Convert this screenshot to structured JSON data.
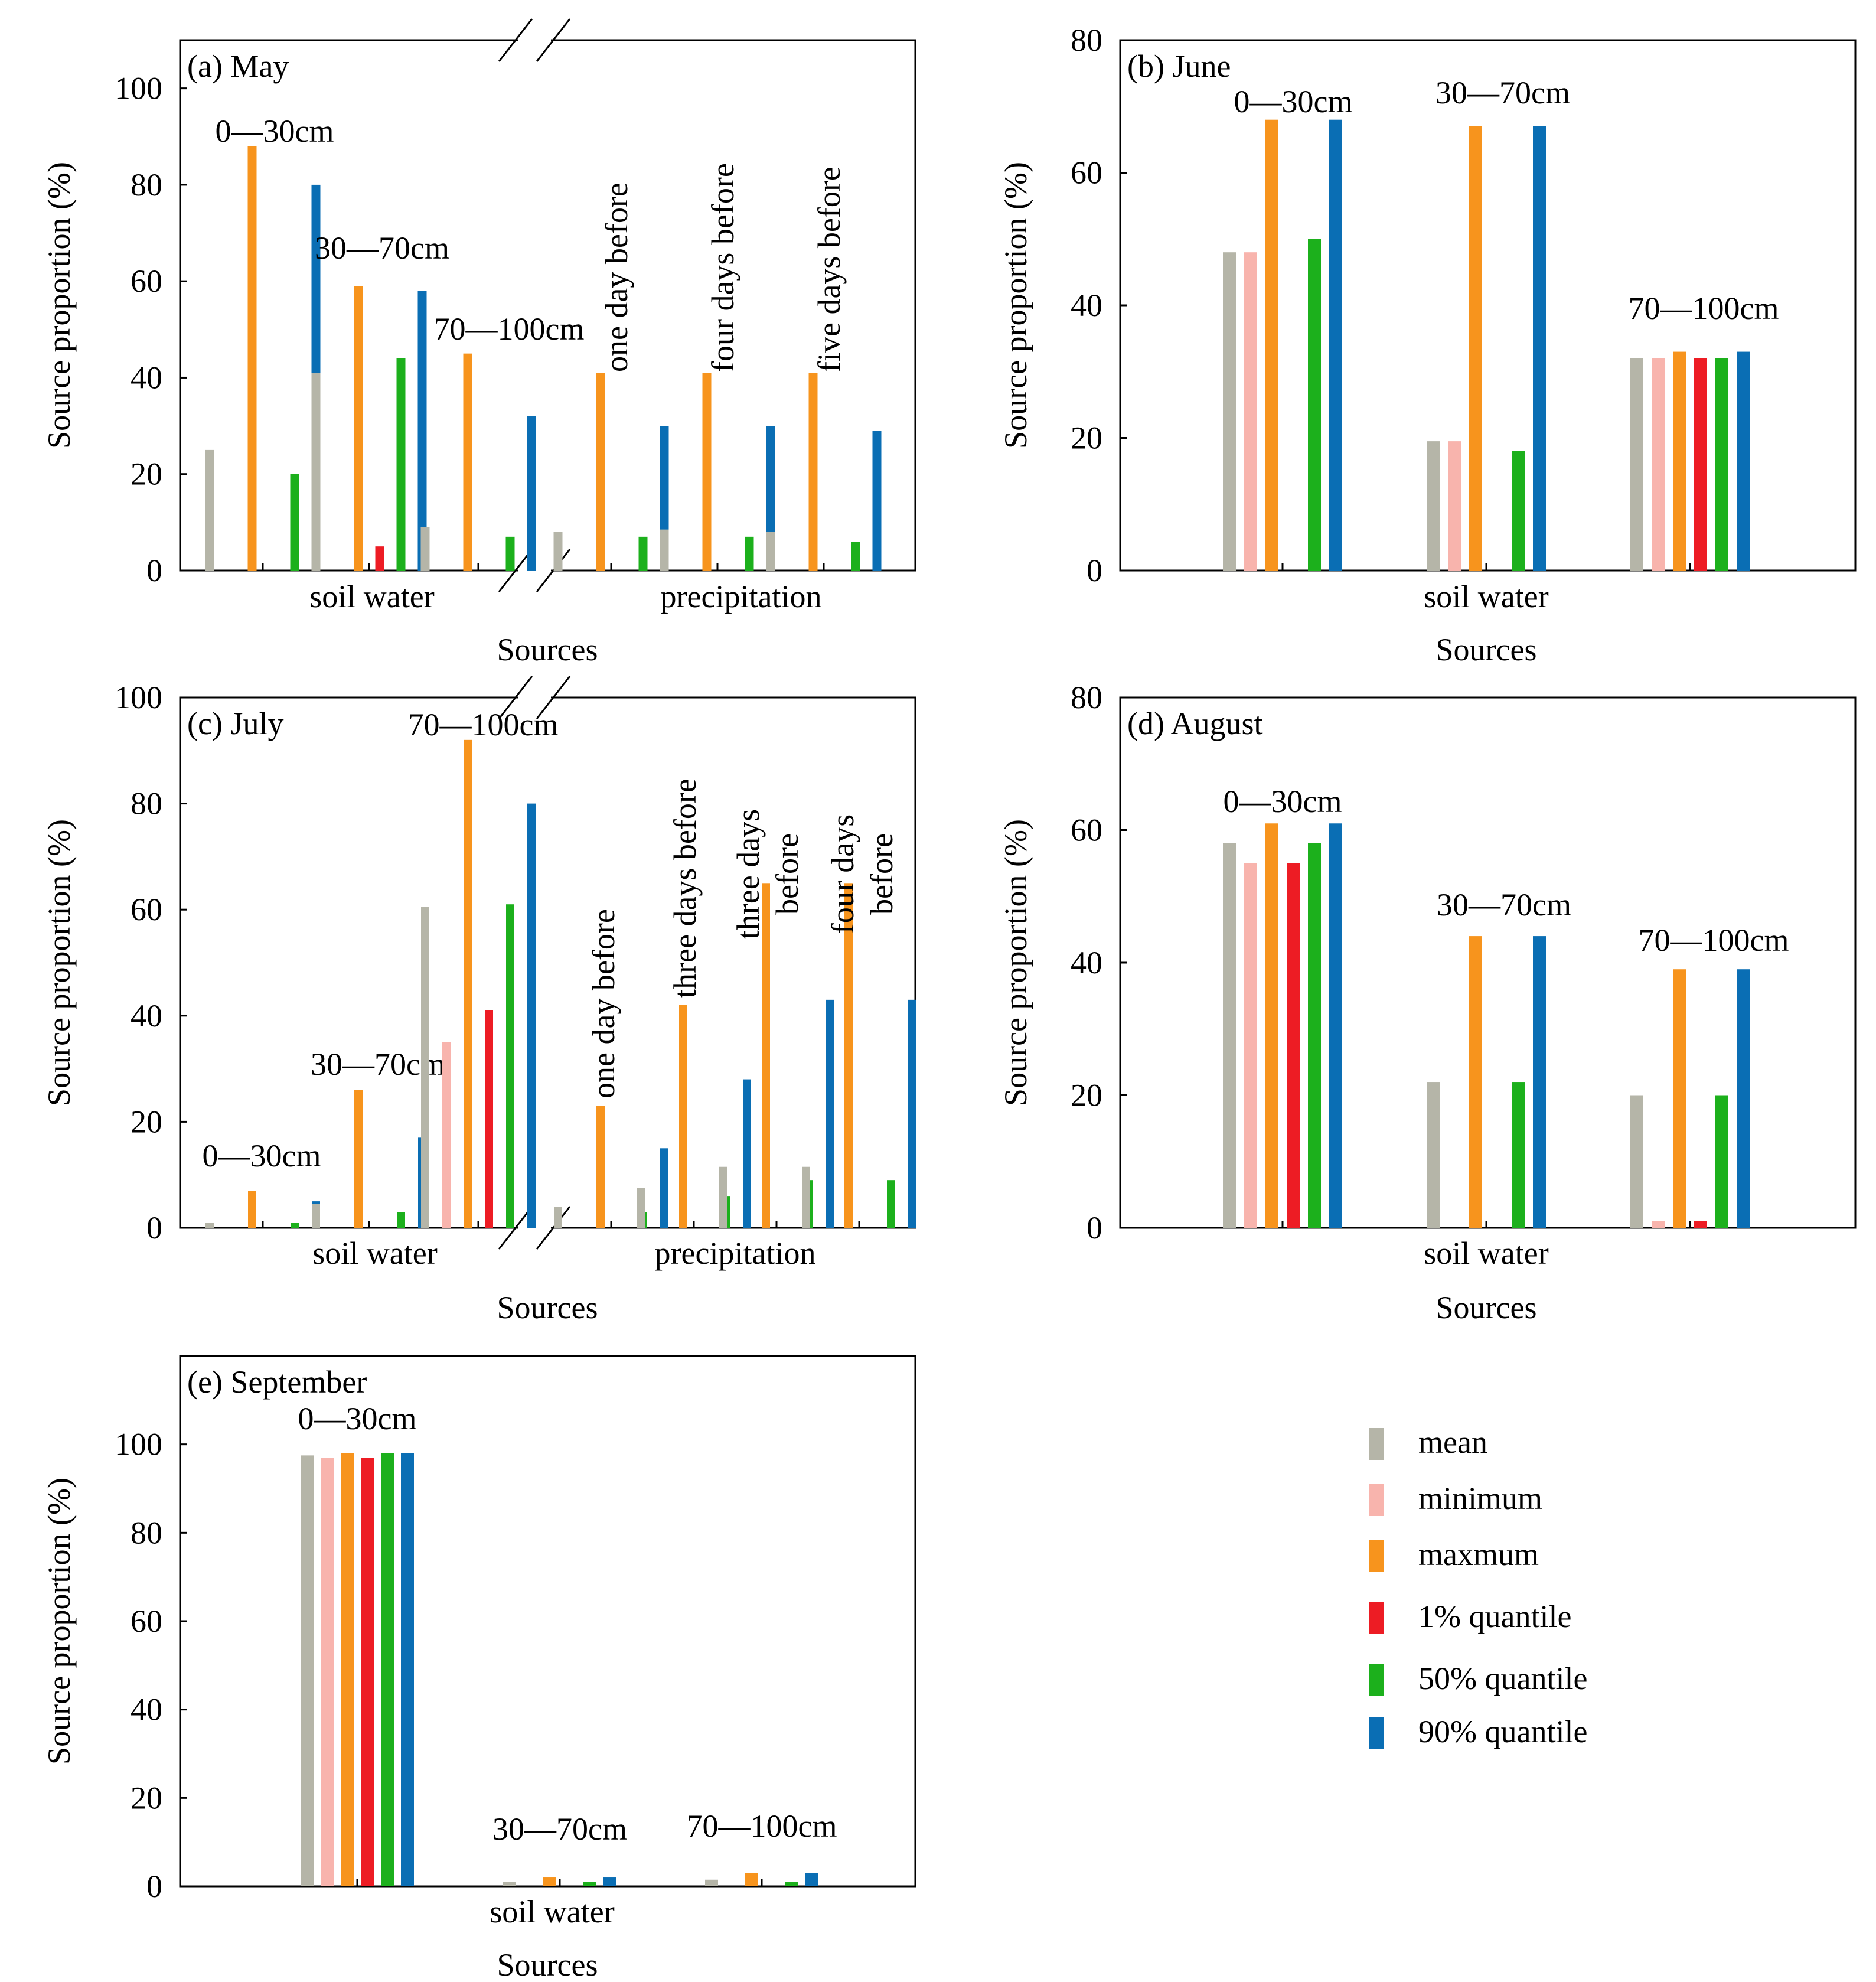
{
  "figure": {
    "y_axis_label": "Source proportion (%)",
    "x_axis_label": "Sources",
    "colors": {
      "mean": "#b5b5a8",
      "minimum": "#f8b4ad",
      "maximum": "#f7941d",
      "q1": "#ed1c24",
      "q50": "#1cb01c",
      "q90": "#0a6eb4"
    }
  },
  "legend": {
    "items": [
      {
        "key": "mean",
        "label": "mean"
      },
      {
        "key": "minimum",
        "label": "minimum"
      },
      {
        "key": "maximum",
        "label": "maxmum"
      },
      {
        "key": "q1",
        "label": "1% quantile"
      },
      {
        "key": "q50",
        "label": "50% quantile"
      },
      {
        "key": "q90",
        "label": "90% quantile"
      }
    ]
  },
  "chart_data": [
    {
      "id": "a",
      "type": "bar",
      "title": "(a) May",
      "xlabel": "Sources",
      "ylabel": "Source proportion (%)",
      "ylim": [
        0,
        110
      ],
      "yticks": [
        0,
        20,
        40,
        60,
        80,
        100
      ],
      "axis_break": true,
      "source_groups": [
        "soil water",
        "precipitation"
      ],
      "categories": [
        "0—30cm",
        "30—70cm",
        "70—100cm",
        "one day before",
        "four days before",
        "five days before"
      ],
      "category_label_orientation": [
        "horizontal",
        "horizontal",
        "horizontal",
        "vertical",
        "vertical",
        "vertical"
      ],
      "series": [
        {
          "name": "mean",
          "values": [
            25,
            41,
            9,
            8,
            8.5,
            8
          ]
        },
        {
          "name": "minimum",
          "values": [
            0,
            0,
            0,
            0,
            0,
            0
          ]
        },
        {
          "name": "maxmum",
          "values": [
            88,
            59,
            45,
            41,
            41,
            41
          ]
        },
        {
          "name": "1% quantile",
          "values": [
            0,
            5,
            0,
            0,
            0,
            0
          ]
        },
        {
          "name": "50% quantile",
          "values": [
            20,
            44,
            7,
            7,
            7,
            6
          ]
        },
        {
          "name": "90% quantile",
          "values": [
            80,
            58,
            32,
            30,
            30,
            29
          ]
        }
      ]
    },
    {
      "id": "b",
      "type": "bar",
      "title": "(b) June",
      "xlabel": "Sources",
      "ylabel": "Source proportion (%)",
      "ylim": [
        0,
        80
      ],
      "yticks": [
        0,
        20,
        40,
        60,
        80
      ],
      "axis_break": false,
      "source_groups": [
        "soil water"
      ],
      "categories": [
        "0—30cm",
        "30—70cm",
        "70—100cm"
      ],
      "category_label_orientation": [
        "horizontal",
        "horizontal",
        "horizontal"
      ],
      "series": [
        {
          "name": "mean",
          "values": [
            48,
            19.5,
            32
          ]
        },
        {
          "name": "minimum",
          "values": [
            48,
            19.5,
            32
          ]
        },
        {
          "name": "maxmum",
          "values": [
            68,
            67,
            33
          ]
        },
        {
          "name": "1% quantile",
          "values": [
            0,
            0,
            32
          ]
        },
        {
          "name": "50% quantile",
          "values": [
            50,
            18,
            32
          ]
        },
        {
          "name": "90% quantile",
          "values": [
            68,
            67,
            33
          ]
        }
      ]
    },
    {
      "id": "c",
      "type": "bar",
      "title": "(c) July",
      "xlabel": "Sources",
      "ylabel": "Source proportion (%)",
      "ylim": [
        0,
        100
      ],
      "yticks": [
        0,
        20,
        40,
        60,
        80,
        100
      ],
      "axis_break": true,
      "source_groups": [
        "soil water",
        "precipitation"
      ],
      "categories": [
        "0—30cm",
        "30—70cm",
        "70—100cm",
        "one day before",
        "three days before",
        "three days before",
        "four days before"
      ],
      "category_label_orientation": [
        "horizontal",
        "horizontal",
        "horizontal",
        "vertical",
        "vertical",
        "vertical-wrapped",
        "vertical-wrapped"
      ],
      "series": [
        {
          "name": "mean",
          "values": [
            1,
            4.5,
            60.5,
            4,
            7.5,
            11.5,
            11.5
          ]
        },
        {
          "name": "minimum",
          "values": [
            0,
            0,
            35,
            0,
            0,
            0,
            0
          ]
        },
        {
          "name": "maxmum",
          "values": [
            7,
            26,
            92,
            23,
            42,
            65,
            65
          ]
        },
        {
          "name": "1% quantile",
          "values": [
            0,
            0,
            41,
            0,
            0,
            0,
            0
          ]
        },
        {
          "name": "50% quantile",
          "values": [
            1,
            3,
            61,
            3,
            6,
            9,
            9
          ]
        },
        {
          "name": "90% quantile",
          "values": [
            5,
            17,
            80,
            15,
            28,
            43,
            43
          ]
        }
      ]
    },
    {
      "id": "d",
      "type": "bar",
      "title": "(d) August",
      "xlabel": "Sources",
      "ylabel": "Source proportion (%)",
      "ylim": [
        0,
        80
      ],
      "yticks": [
        0,
        20,
        40,
        60,
        80
      ],
      "axis_break": false,
      "source_groups": [
        "soil water"
      ],
      "categories": [
        "0—30cm",
        "30—70cm",
        "70—100cm"
      ],
      "category_label_orientation": [
        "horizontal",
        "horizontal",
        "horizontal"
      ],
      "series": [
        {
          "name": "mean",
          "values": [
            58,
            22,
            20
          ]
        },
        {
          "name": "minimum",
          "values": [
            55,
            0,
            1
          ]
        },
        {
          "name": "maxmum",
          "values": [
            61,
            44,
            39
          ]
        },
        {
          "name": "1% quantile",
          "values": [
            55,
            0,
            1
          ]
        },
        {
          "name": "50% quantile",
          "values": [
            58,
            22,
            20
          ]
        },
        {
          "name": "90% quantile",
          "values": [
            61,
            44,
            39
          ]
        }
      ]
    },
    {
      "id": "e",
      "type": "bar",
      "title": "(e) September",
      "xlabel": "Sources",
      "ylabel": "Source proportion (%)",
      "ylim": [
        0,
        120
      ],
      "yticks": [
        0,
        20,
        40,
        60,
        80,
        100
      ],
      "axis_break": false,
      "source_groups": [
        "soil water"
      ],
      "categories": [
        "0—30cm",
        "30—70cm",
        "70—100cm"
      ],
      "category_label_orientation": [
        "horizontal",
        "horizontal",
        "horizontal"
      ],
      "series": [
        {
          "name": "mean",
          "values": [
            97.5,
            1,
            1.5
          ]
        },
        {
          "name": "minimum",
          "values": [
            97,
            0,
            0
          ]
        },
        {
          "name": "maxmum",
          "values": [
            98,
            2,
            3
          ]
        },
        {
          "name": "1% quantile",
          "values": [
            97,
            0,
            0
          ]
        },
        {
          "name": "50% quantile",
          "values": [
            98,
            1,
            1
          ]
        },
        {
          "name": "90% quantile",
          "values": [
            98,
            2,
            3
          ]
        }
      ]
    }
  ]
}
